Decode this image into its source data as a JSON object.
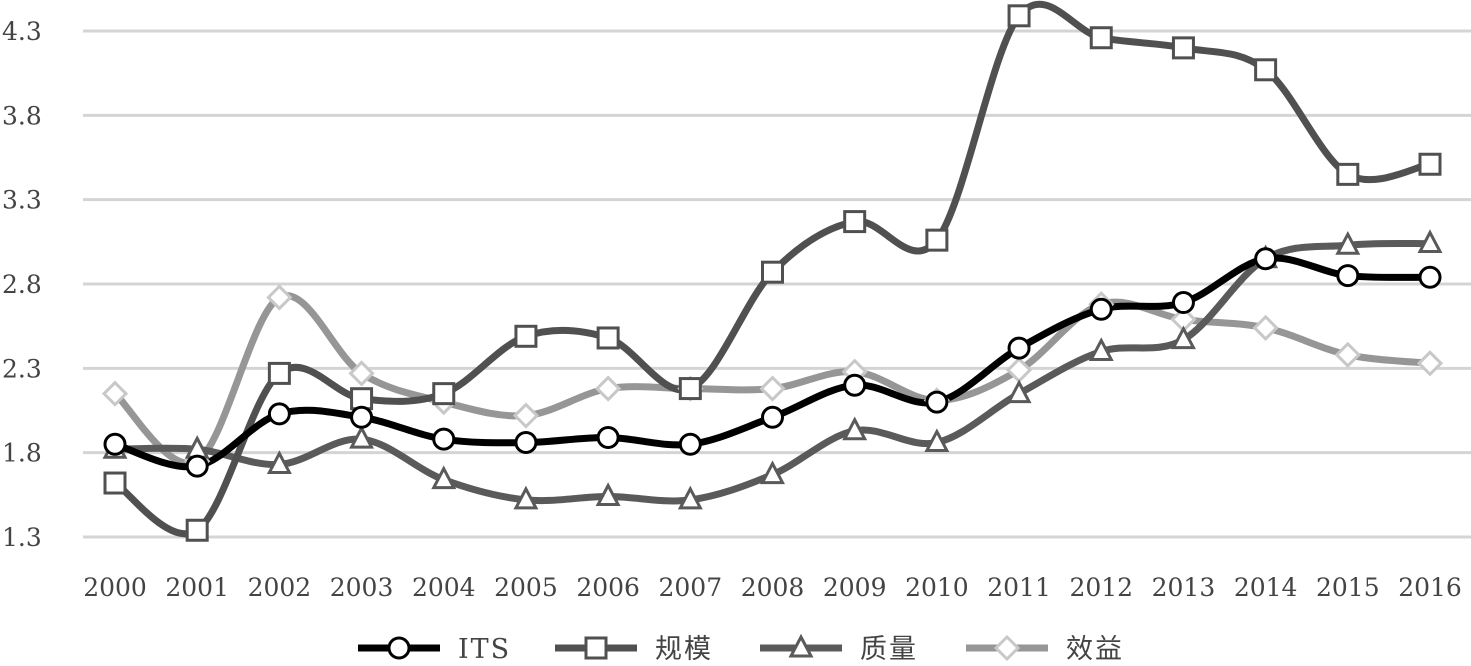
{
  "chart_data": {
    "type": "line",
    "title": "",
    "xlabel": "",
    "ylabel": "",
    "ylim": [
      1.3,
      4.35
    ],
    "yticks": [
      "1.3",
      "1.8",
      "2.3",
      "2.8",
      "3.3",
      "3.8",
      "4.3"
    ],
    "ytick_values": [
      1.3,
      1.8,
      2.3,
      2.8,
      3.3,
      3.8,
      4.3
    ],
    "x": [
      "2000",
      "2001",
      "2002",
      "2003",
      "2004",
      "2005",
      "2006",
      "2007",
      "2008",
      "2009",
      "2010",
      "2011",
      "2012",
      "2013",
      "2014",
      "2015",
      "2016"
    ],
    "grid": true,
    "legend": "bottom",
    "smooth": true,
    "series": [
      {
        "name": "ITS",
        "color": "#000000",
        "marker": "circle",
        "values": [
          1.85,
          1.72,
          2.03,
          2.01,
          1.88,
          1.86,
          1.89,
          1.85,
          2.01,
          2.2,
          2.1,
          2.42,
          2.65,
          2.69,
          2.95,
          2.85,
          2.84
        ]
      },
      {
        "name": "规模",
        "color": "#505050",
        "marker": "square",
        "values": [
          1.62,
          1.34,
          2.27,
          2.12,
          2.15,
          2.49,
          2.48,
          2.18,
          2.87,
          3.17,
          3.06,
          4.39,
          4.26,
          4.2,
          4.07,
          3.45,
          3.51
        ]
      },
      {
        "name": "质量",
        "color": "#5a5a5a",
        "marker": "triangle",
        "values": [
          1.82,
          1.82,
          1.73,
          1.88,
          1.64,
          1.52,
          1.54,
          1.52,
          1.67,
          1.93,
          1.86,
          2.15,
          2.4,
          2.47,
          2.95,
          3.03,
          3.04
        ]
      },
      {
        "name": "效益",
        "color": "#969696",
        "marker": "diamond",
        "values": [
          2.15,
          1.75,
          2.72,
          2.27,
          2.1,
          2.02,
          2.18,
          2.18,
          2.18,
          2.28,
          2.11,
          2.29,
          2.68,
          2.59,
          2.54,
          2.38,
          2.33
        ]
      }
    ]
  }
}
